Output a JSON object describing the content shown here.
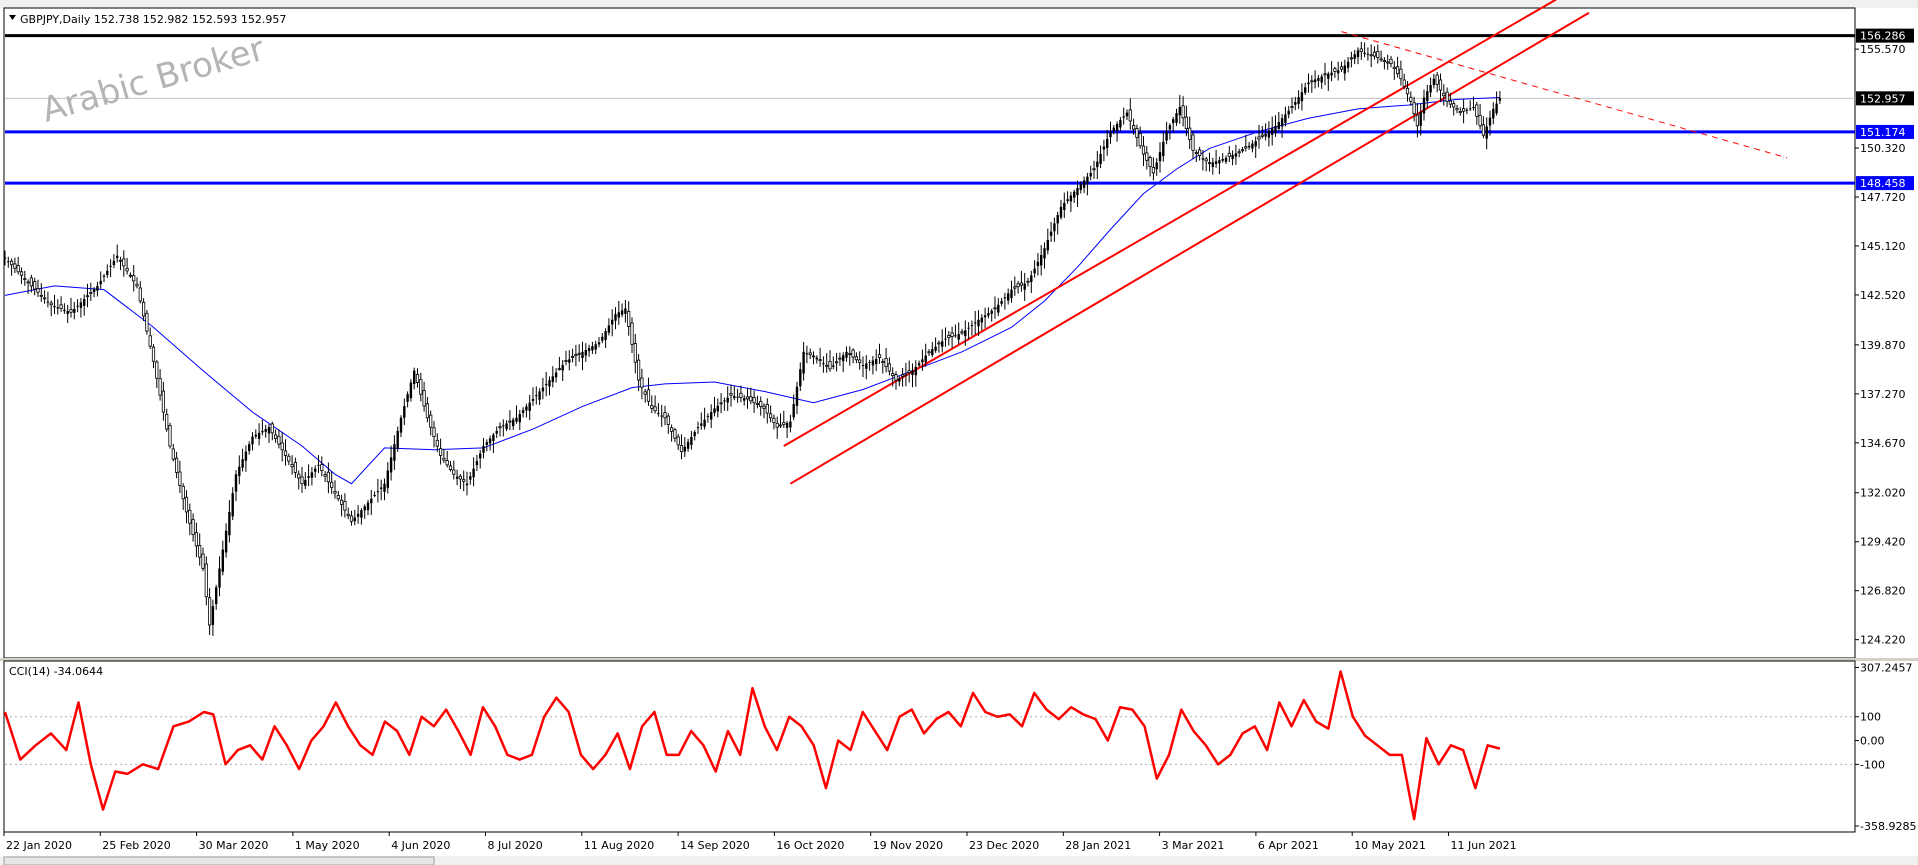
{
  "chart_data": [
    {
      "type": "candlestick",
      "symbol_label": "GBPJPY,Daily  152.738 152.982 152.593 152.957",
      "watermark": "Arabic Broker",
      "ylim": [
        123.3,
        157.7
      ],
      "y_tick_labels": [
        "155.570",
        "152.957",
        "151.174",
        "150.320",
        "148.458",
        "147.720",
        "145.120",
        "142.520",
        "139.870",
        "137.270",
        "134.670",
        "132.020",
        "129.420",
        "126.820",
        "124.220"
      ],
      "y_ticks": [
        155.57,
        150.32,
        147.72,
        145.12,
        142.52,
        139.87,
        137.27,
        134.67,
        132.02,
        129.42,
        126.82,
        124.22
      ],
      "price_badges": [
        {
          "label": "156.286",
          "value": 156.286,
          "style": "dark"
        },
        {
          "label": "152.957",
          "value": 152.957,
          "style": "dark"
        },
        {
          "label": "151.174",
          "value": 151.174,
          "style": "blue"
        },
        {
          "label": "148.458",
          "value": 148.458,
          "style": "blue"
        }
      ],
      "x_labels": [
        "22 Jan 2020",
        "25 Feb 2020",
        "30 Mar 2020",
        "1 May 2020",
        "4 Jun 2020",
        "8 Jul 2020",
        "11 Aug 2020",
        "14 Sep 2020",
        "16 Oct 2020",
        "19 Nov 2020",
        "23 Dec 2020",
        "28 Jan 2021",
        "3 Mar 2021",
        "6 Apr 2021",
        "10 May 2021",
        "11 Jun 2021"
      ],
      "horizontal_levels": [
        {
          "value": 156.286,
          "color": "#000000"
        },
        {
          "value": 151.174,
          "color": "#0000ff"
        },
        {
          "value": 148.458,
          "color": "#0000ff"
        }
      ],
      "current_price": 152.957,
      "colors": {
        "candle": "#000000",
        "ma": "#0000ff",
        "trend": "#ff0000",
        "level_blue": "#0000ff",
        "level_black": "#000000",
        "cci": "#ff0000"
      },
      "close_path": [
        [
          0,
          144.5
        ],
        [
          8,
          143.0
        ],
        [
          14,
          142.0
        ],
        [
          20,
          141.6
        ],
        [
          28,
          143.0
        ],
        [
          34,
          144.6
        ],
        [
          40,
          143.0
        ],
        [
          45,
          139.0
        ],
        [
          50,
          134.5
        ],
        [
          55,
          131.0
        ],
        [
          60,
          128.0
        ],
        [
          62,
          125.0
        ],
        [
          65,
          128.0
        ],
        [
          70,
          133.0
        ],
        [
          75,
          135.0
        ],
        [
          80,
          135.5
        ],
        [
          85,
          134.0
        ],
        [
          90,
          132.5
        ],
        [
          95,
          133.5
        ],
        [
          100,
          132.0
        ],
        [
          105,
          130.5
        ],
        [
          110,
          131.5
        ],
        [
          115,
          132.5
        ],
        [
          120,
          136.0
        ],
        [
          124,
          138.5
        ],
        [
          128,
          136.0
        ],
        [
          132,
          134.0
        ],
        [
          136,
          133.0
        ],
        [
          140,
          132.5
        ],
        [
          145,
          134.5
        ],
        [
          150,
          135.5
        ],
        [
          155,
          136.0
        ],
        [
          160,
          137.0
        ],
        [
          165,
          138.0
        ],
        [
          170,
          139.0
        ],
        [
          175,
          139.5
        ],
        [
          180,
          140.0
        ],
        [
          185,
          141.5
        ],
        [
          188,
          141.8
        ],
        [
          192,
          138.0
        ],
        [
          196,
          136.5
        ],
        [
          200,
          136.0
        ],
        [
          205,
          134.2
        ],
        [
          210,
          135.5
        ],
        [
          215,
          136.5
        ],
        [
          220,
          137.2
        ],
        [
          225,
          137.0
        ],
        [
          230,
          136.5
        ],
        [
          234,
          135.5
        ],
        [
          238,
          135.8
        ],
        [
          242,
          139.5
        ],
        [
          246,
          139.2
        ],
        [
          250,
          138.6
        ],
        [
          255,
          139.5
        ],
        [
          260,
          138.8
        ],
        [
          265,
          139.2
        ],
        [
          270,
          138.0
        ],
        [
          275,
          138.5
        ],
        [
          280,
          139.5
        ],
        [
          285,
          140.2
        ],
        [
          290,
          140.5
        ],
        [
          295,
          141.2
        ],
        [
          300,
          141.8
        ],
        [
          305,
          142.8
        ],
        [
          310,
          143.2
        ],
        [
          315,
          145.0
        ],
        [
          320,
          147.2
        ],
        [
          325,
          148.2
        ],
        [
          330,
          149.2
        ],
        [
          335,
          151.2
        ],
        [
          340,
          152.2
        ],
        [
          345,
          150.0
        ],
        [
          348,
          149.0
        ],
        [
          352,
          151.2
        ],
        [
          356,
          152.5
        ],
        [
          360,
          150.2
        ],
        [
          365,
          149.5
        ],
        [
          370,
          149.8
        ],
        [
          375,
          150.2
        ],
        [
          380,
          150.8
        ],
        [
          385,
          151.5
        ],
        [
          390,
          152.5
        ],
        [
          395,
          153.8
        ],
        [
          400,
          154.2
        ],
        [
          405,
          154.5
        ],
        [
          410,
          155.5
        ],
        [
          415,
          155.2
        ],
        [
          420,
          154.8
        ],
        [
          423,
          154.0
        ],
        [
          426,
          152.8
        ],
        [
          428,
          151.5
        ],
        [
          430,
          153.0
        ],
        [
          433,
          154.0
        ],
        [
          437,
          152.8
        ],
        [
          441,
          152.2
        ],
        [
          445,
          152.5
        ],
        [
          448,
          151.0
        ],
        [
          451,
          152.4
        ],
        [
          453,
          152.957
        ]
      ],
      "ma_path": [
        [
          0,
          142.5
        ],
        [
          15,
          143.0
        ],
        [
          30,
          142.8
        ],
        [
          45,
          140.8
        ],
        [
          60,
          138.5
        ],
        [
          75,
          136.3
        ],
        [
          90,
          134.5
        ],
        [
          100,
          133.0
        ],
        [
          105,
          132.5
        ],
        [
          115,
          134.4
        ],
        [
          130,
          134.3
        ],
        [
          145,
          134.4
        ],
        [
          160,
          135.4
        ],
        [
          175,
          136.6
        ],
        [
          190,
          137.6
        ],
        [
          200,
          137.8
        ],
        [
          215,
          137.9
        ],
        [
          230,
          137.4
        ],
        [
          245,
          136.8
        ],
        [
          260,
          137.5
        ],
        [
          275,
          138.5
        ],
        [
          290,
          139.5
        ],
        [
          305,
          140.8
        ],
        [
          315,
          142.2
        ],
        [
          325,
          144.0
        ],
        [
          335,
          146.0
        ],
        [
          345,
          147.9
        ],
        [
          355,
          149.2
        ],
        [
          365,
          150.3
        ],
        [
          380,
          151.2
        ],
        [
          395,
          151.9
        ],
        [
          410,
          152.4
        ],
        [
          425,
          152.6
        ],
        [
          440,
          152.9
        ],
        [
          453,
          153.0
        ]
      ],
      "trend_lines": [
        {
          "from": [
            236,
            134.5
          ],
          "to": [
            470,
            158.2
          ]
        },
        {
          "from": [
            238,
            132.5
          ],
          "to": [
            480,
            157.5
          ]
        },
        {
          "from": [
            405,
            156.5
          ],
          "to": [
            540,
            149.8
          ],
          "dashed": true
        }
      ]
    },
    {
      "type": "line",
      "label": "CCI(14) -34.0644",
      "ylim": [
        -380,
        330
      ],
      "y_tick_labels": [
        "307.2457",
        "100",
        "0.00",
        "-100",
        "-358.9285"
      ],
      "y_ticks": [
        307.2457,
        100,
        0,
        -100,
        -358.9285
      ],
      "reference_levels": [
        100,
        -100
      ],
      "path": [
        [
          0,
          120
        ],
        [
          5,
          -80
        ],
        [
          10,
          -20
        ],
        [
          15,
          30
        ],
        [
          20,
          -40
        ],
        [
          24,
          160
        ],
        [
          28,
          -100
        ],
        [
          32,
          -290
        ],
        [
          36,
          -130
        ],
        [
          40,
          -140
        ],
        [
          45,
          -100
        ],
        [
          50,
          -120
        ],
        [
          55,
          60
        ],
        [
          60,
          80
        ],
        [
          65,
          120
        ],
        [
          68,
          110
        ],
        [
          72,
          -100
        ],
        [
          76,
          -40
        ],
        [
          80,
          -20
        ],
        [
          84,
          -80
        ],
        [
          88,
          60
        ],
        [
          92,
          -20
        ],
        [
          96,
          -120
        ],
        [
          100,
          0
        ],
        [
          104,
          60
        ],
        [
          108,
          160
        ],
        [
          112,
          60
        ],
        [
          116,
          -20
        ],
        [
          120,
          -60
        ],
        [
          124,
          80
        ],
        [
          128,
          40
        ],
        [
          132,
          -60
        ],
        [
          136,
          100
        ],
        [
          140,
          60
        ],
        [
          144,
          130
        ],
        [
          148,
          40
        ],
        [
          152,
          -60
        ],
        [
          156,
          140
        ],
        [
          160,
          60
        ],
        [
          164,
          -60
        ],
        [
          168,
          -80
        ],
        [
          172,
          -60
        ],
        [
          176,
          100
        ],
        [
          180,
          180
        ],
        [
          184,
          120
        ],
        [
          188,
          -60
        ],
        [
          192,
          -120
        ],
        [
          196,
          -60
        ],
        [
          200,
          30
        ],
        [
          204,
          -120
        ],
        [
          208,
          60
        ],
        [
          212,
          120
        ],
        [
          216,
          -60
        ],
        [
          220,
          -60
        ],
        [
          224,
          40
        ],
        [
          228,
          -20
        ],
        [
          232,
          -130
        ],
        [
          236,
          40
        ],
        [
          240,
          -60
        ],
        [
          244,
          220
        ],
        [
          248,
          60
        ],
        [
          252,
          -40
        ],
        [
          256,
          100
        ],
        [
          260,
          60
        ],
        [
          264,
          -20
        ],
        [
          268,
          -200
        ],
        [
          272,
          0
        ],
        [
          276,
          -40
        ],
        [
          280,
          120
        ],
        [
          284,
          40
        ],
        [
          288,
          -40
        ],
        [
          292,
          100
        ],
        [
          296,
          130
        ],
        [
          300,
          30
        ],
        [
          304,
          90
        ],
        [
          308,
          120
        ],
        [
          312,
          60
        ],
        [
          316,
          200
        ],
        [
          320,
          120
        ],
        [
          324,
          100
        ],
        [
          328,
          110
        ],
        [
          332,
          60
        ],
        [
          336,
          200
        ],
        [
          340,
          130
        ],
        [
          344,
          90
        ],
        [
          348,
          140
        ],
        [
          352,
          110
        ],
        [
          356,
          90
        ],
        [
          360,
          0
        ],
        [
          364,
          140
        ],
        [
          368,
          130
        ],
        [
          372,
          60
        ],
        [
          376,
          -160
        ],
        [
          380,
          -60
        ],
        [
          384,
          130
        ],
        [
          388,
          40
        ],
        [
          392,
          -20
        ],
        [
          396,
          -100
        ],
        [
          400,
          -60
        ],
        [
          404,
          30
        ],
        [
          408,
          60
        ],
        [
          412,
          -40
        ],
        [
          416,
          160
        ],
        [
          420,
          60
        ],
        [
          424,
          170
        ],
        [
          428,
          80
        ],
        [
          432,
          50
        ],
        [
          436,
          290
        ],
        [
          440,
          100
        ],
        [
          444,
          20
        ],
        [
          448,
          -20
        ],
        [
          452,
          -60
        ],
        [
          456,
          -60
        ],
        [
          460,
          -330
        ],
        [
          464,
          10
        ],
        [
          468,
          -100
        ],
        [
          472,
          -20
        ],
        [
          476,
          -40
        ],
        [
          480,
          -200
        ],
        [
          484,
          -20
        ],
        [
          488,
          -34
        ]
      ]
    }
  ]
}
